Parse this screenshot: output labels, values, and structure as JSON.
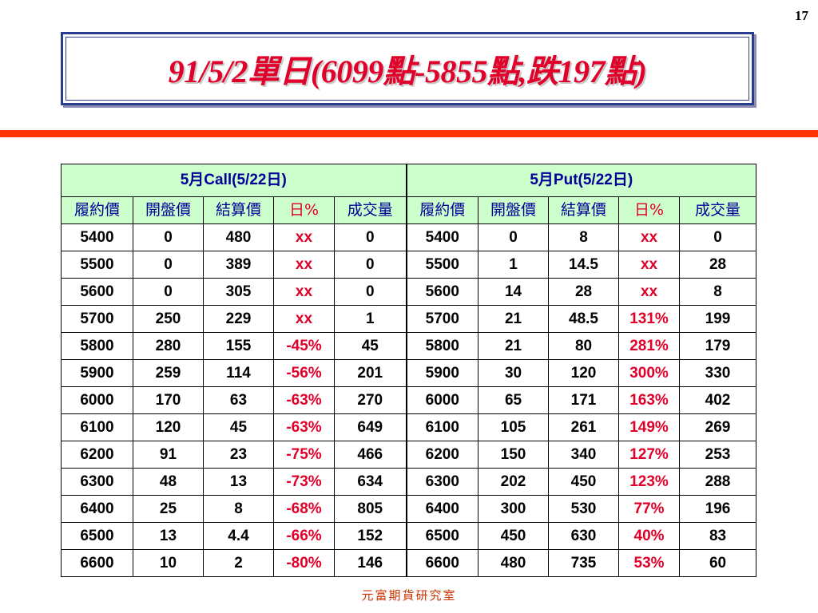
{
  "slide": {
    "page_number": "17",
    "title": "91/5/2單日(6099點-5855點,跌197點)",
    "footer": "元富期貨研究室"
  },
  "table": {
    "call_header": "5月Call(5/22日)",
    "put_header": "5月Put(5/22日)",
    "columns": [
      "履約價",
      "開盤價",
      "結算價",
      "日%",
      "成交量"
    ],
    "rows": [
      {
        "call": [
          "5400",
          "0",
          "480",
          "xx",
          "0"
        ],
        "put": [
          "5400",
          "0",
          "8",
          "xx",
          "0"
        ]
      },
      {
        "call": [
          "5500",
          "0",
          "389",
          "xx",
          "0"
        ],
        "put": [
          "5500",
          "1",
          "14.5",
          "xx",
          "28"
        ]
      },
      {
        "call": [
          "5600",
          "0",
          "305",
          "xx",
          "0"
        ],
        "put": [
          "5600",
          "14",
          "28",
          "xx",
          "8"
        ]
      },
      {
        "call": [
          "5700",
          "250",
          "229",
          "xx",
          "1"
        ],
        "put": [
          "5700",
          "21",
          "48.5",
          "131%",
          "199"
        ]
      },
      {
        "call": [
          "5800",
          "280",
          "155",
          "-45%",
          "45"
        ],
        "put": [
          "5800",
          "21",
          "80",
          "281%",
          "179"
        ]
      },
      {
        "call": [
          "5900",
          "259",
          "114",
          "-56%",
          "201"
        ],
        "put": [
          "5900",
          "30",
          "120",
          "300%",
          "330"
        ]
      },
      {
        "call": [
          "6000",
          "170",
          "63",
          "-63%",
          "270"
        ],
        "put": [
          "6000",
          "65",
          "171",
          "163%",
          "402"
        ]
      },
      {
        "call": [
          "6100",
          "120",
          "45",
          "-63%",
          "649"
        ],
        "put": [
          "6100",
          "105",
          "261",
          "149%",
          "269"
        ]
      },
      {
        "call": [
          "6200",
          "91",
          "23",
          "-75%",
          "466"
        ],
        "put": [
          "6200",
          "150",
          "340",
          "127%",
          "253"
        ]
      },
      {
        "call": [
          "6300",
          "48",
          "13",
          "-73%",
          "634"
        ],
        "put": [
          "6300",
          "202",
          "450",
          "123%",
          "288"
        ]
      },
      {
        "call": [
          "6400",
          "25",
          "8",
          "-68%",
          "805"
        ],
        "put": [
          "6400",
          "300",
          "530",
          "77%",
          "196"
        ]
      },
      {
        "call": [
          "6500",
          "13",
          "4.4",
          "-66%",
          "152"
        ],
        "put": [
          "6500",
          "450",
          "630",
          "40%",
          "83"
        ]
      },
      {
        "call": [
          "6600",
          "10",
          "2",
          "-80%",
          "146"
        ],
        "put": [
          "6600",
          "480",
          "735",
          "53%",
          "60"
        ]
      }
    ]
  },
  "colors": {
    "title": "#e0002a",
    "title_border": "#2a3c8f",
    "rule_bar": "#ff3300",
    "header_fill": "#ccffcc",
    "header_text": "#000099",
    "percent_text": "#e0002a",
    "footer_text": "#cc3300"
  }
}
